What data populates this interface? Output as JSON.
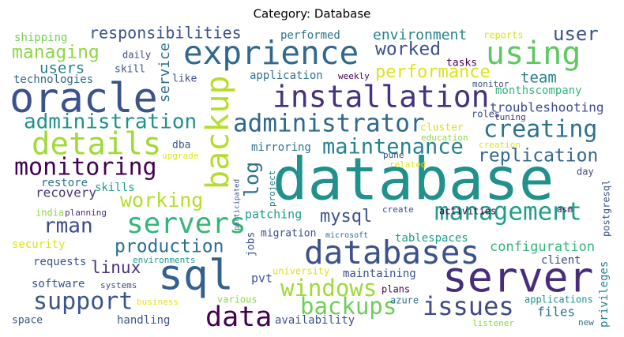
{
  "chart_data": {
    "type": "wordcloud",
    "title": "Category: Database",
    "words": [
      {
        "text": "database",
        "weight": 74,
        "color": "#21918c"
      },
      {
        "text": "oracle",
        "weight": 52,
        "color": "#3b528b"
      },
      {
        "text": "exprience",
        "weight": 41,
        "color": "#31688e"
      },
      {
        "text": "server",
        "weight": 53,
        "color": "#472d7b"
      },
      {
        "text": "sql",
        "weight": 53,
        "color": "#355f8d"
      },
      {
        "text": "using",
        "weight": 40,
        "color": "#5ec962"
      },
      {
        "text": "installation",
        "weight": 38,
        "color": "#46327e"
      },
      {
        "text": "backup",
        "weight": 40,
        "color": "#b5de2b"
      },
      {
        "text": "details",
        "weight": 39,
        "color": "#a0da39"
      },
      {
        "text": "administrator",
        "weight": 31,
        "color": "#31688e"
      },
      {
        "text": "creating",
        "weight": 30,
        "color": "#2c728e"
      },
      {
        "text": "monitoring",
        "weight": 30,
        "color": "#440154"
      },
      {
        "text": "administration",
        "weight": 26,
        "color": "#21918c"
      },
      {
        "text": "databases",
        "weight": 41,
        "color": "#3b528b"
      },
      {
        "text": "management",
        "weight": 31,
        "color": "#1f9e89"
      },
      {
        "text": "replication",
        "weight": 23,
        "color": "#31688e"
      },
      {
        "text": "maintenance",
        "weight": 27,
        "color": "#26828e"
      },
      {
        "text": "servers",
        "weight": 36,
        "color": "#35b779"
      },
      {
        "text": "support",
        "weight": 30,
        "color": "#39568c"
      },
      {
        "text": "data",
        "weight": 35,
        "color": "#440154"
      },
      {
        "text": "issues",
        "weight": 32,
        "color": "#3e4a89"
      },
      {
        "text": "windows",
        "weight": 29,
        "color": "#a0da39"
      },
      {
        "text": "backups",
        "weight": 29,
        "color": "#6ece58"
      },
      {
        "text": "production",
        "weight": 23,
        "color": "#2c728e"
      },
      {
        "text": "linux",
        "weight": 21,
        "color": "#46327e"
      },
      {
        "text": "rman",
        "weight": 26,
        "color": "#3e4a89"
      },
      {
        "text": "mysql",
        "weight": 22,
        "color": "#3b528b"
      },
      {
        "text": "working",
        "weight": 25,
        "color": "#b5de2b"
      },
      {
        "text": "log",
        "weight": 25,
        "color": "#2c728e"
      },
      {
        "text": "worked",
        "weight": 23,
        "color": "#3b528b"
      },
      {
        "text": "performance",
        "weight": 22,
        "color": "#dde318"
      },
      {
        "text": "user",
        "weight": 24,
        "color": "#3b528b"
      },
      {
        "text": "managing",
        "weight": 23,
        "color": "#8fd744"
      },
      {
        "text": "responsibilities",
        "weight": 20,
        "color": "#3b528b"
      },
      {
        "text": "environment",
        "weight": 18,
        "color": "#26828e"
      },
      {
        "text": "team",
        "weight": 19,
        "color": "#26828e"
      },
      {
        "text": "troubleshooting",
        "weight": 16,
        "color": "#3e4a89"
      },
      {
        "text": "configuration",
        "weight": 17,
        "color": "#35b779"
      },
      {
        "text": "recovery",
        "weight": 16,
        "color": "#46327e"
      },
      {
        "text": "users",
        "weight": 19,
        "color": "#26828e"
      },
      {
        "text": "shipping",
        "weight": 14,
        "color": "#75d054"
      },
      {
        "text": "technologies",
        "weight": 14,
        "color": "#31688e"
      },
      {
        "text": "service",
        "weight": 18,
        "color": "#2c728e"
      },
      {
        "text": "skill",
        "weight": 13,
        "color": "#3b528b"
      },
      {
        "text": "like",
        "weight": 13,
        "color": "#3b528b"
      },
      {
        "text": "daily",
        "weight": 12,
        "color": "#3e4a89"
      },
      {
        "text": "performed",
        "weight": 14,
        "color": "#2c728e"
      },
      {
        "text": "reports",
        "weight": 12,
        "color": "#dde318"
      },
      {
        "text": "tasks",
        "weight": 13,
        "color": "#440154"
      },
      {
        "text": "application",
        "weight": 14,
        "color": "#2c728e"
      },
      {
        "text": "weekly",
        "weight": 11,
        "color": "#440154"
      },
      {
        "text": "monthscompany",
        "weight": 14,
        "color": "#35b779"
      },
      {
        "text": "monitor",
        "weight": 11,
        "color": "#3b528b"
      },
      {
        "text": "roles",
        "weight": 12,
        "color": "#3e4a89"
      },
      {
        "text": "tuning",
        "weight": 11,
        "color": "#46327e"
      },
      {
        "text": "cluster",
        "weight": 13,
        "color": "#dde318"
      },
      {
        "text": "education",
        "weight": 11,
        "color": "#8fd744"
      },
      {
        "text": "creation",
        "weight": 11,
        "color": "#dde318"
      },
      {
        "text": "mirroring",
        "weight": 14,
        "color": "#2c728e"
      },
      {
        "text": "pune",
        "weight": 11,
        "color": "#3e4a89"
      },
      {
        "text": "related",
        "weight": 11,
        "color": "#dde318"
      },
      {
        "text": "dba",
        "weight": 13,
        "color": "#3b528b"
      },
      {
        "text": "upgrade",
        "weight": 11,
        "color": "#dde318"
      },
      {
        "text": "restore",
        "weight": 14,
        "color": "#2c728e"
      },
      {
        "text": "skills",
        "weight": 14,
        "color": "#1f9e89"
      },
      {
        "text": "project",
        "weight": 11,
        "color": "#26828e"
      },
      {
        "text": "participated",
        "weight": 9,
        "color": "#3b528b"
      },
      {
        "text": "day",
        "weight": 12,
        "color": "#3e4a89"
      },
      {
        "text": "india",
        "weight": 12,
        "color": "#8fd744"
      },
      {
        "text": "planning",
        "weight": 11,
        "color": "#46327e"
      },
      {
        "text": "patching",
        "weight": 15,
        "color": "#1f9e89"
      },
      {
        "text": "create",
        "weight": 11,
        "color": "#3e4a89"
      },
      {
        "text": "activities",
        "weight": 12,
        "color": "#440154"
      },
      {
        "text": "asm",
        "weight": 11,
        "color": "#440154"
      },
      {
        "text": "postgresql",
        "weight": 12,
        "color": "#3b528b"
      },
      {
        "text": "migration",
        "weight": 13,
        "color": "#3b528b"
      },
      {
        "text": "microsoft",
        "weight": 10,
        "color": "#2c728e"
      },
      {
        "text": "tablespaces",
        "weight": 14,
        "color": "#1f9e89"
      },
      {
        "text": "jobs",
        "weight": 13,
        "color": "#3b528b"
      },
      {
        "text": "security",
        "weight": 14,
        "color": "#dde318"
      },
      {
        "text": "requests",
        "weight": 14,
        "color": "#3b528b"
      },
      {
        "text": "environments",
        "weight": 11,
        "color": "#1f9e89"
      },
      {
        "text": "client",
        "weight": 14,
        "color": "#3e4a89"
      },
      {
        "text": "privileges",
        "weight": 14,
        "color": "#26828e"
      },
      {
        "text": "university",
        "weight": 12,
        "color": "#dde318"
      },
      {
        "text": "pvt",
        "weight": 15,
        "color": "#3b528b"
      },
      {
        "text": "maintaining",
        "weight": 14,
        "color": "#3b528b"
      },
      {
        "text": "software",
        "weight": 14,
        "color": "#3b528b"
      },
      {
        "text": "systems",
        "weight": 11,
        "color": "#3e4a89"
      },
      {
        "text": "plans",
        "weight": 12,
        "color": "#440154"
      },
      {
        "text": "azure",
        "weight": 12,
        "color": "#2c728e"
      },
      {
        "text": "applications",
        "weight": 12,
        "color": "#21918c"
      },
      {
        "text": "business",
        "weight": 11,
        "color": "#dde318"
      },
      {
        "text": "various",
        "weight": 12,
        "color": "#8fd744"
      },
      {
        "text": "files",
        "weight": 16,
        "color": "#2c728e"
      },
      {
        "text": "space",
        "weight": 13,
        "color": "#3b528b"
      },
      {
        "text": "handling",
        "weight": 14,
        "color": "#3b528b"
      },
      {
        "text": "availability",
        "weight": 14,
        "color": "#3b528b"
      },
      {
        "text": "listener",
        "weight": 11,
        "color": "#8fd744"
      },
      {
        "text": "new",
        "weight": 11,
        "color": "#2c728e"
      }
    ]
  }
}
